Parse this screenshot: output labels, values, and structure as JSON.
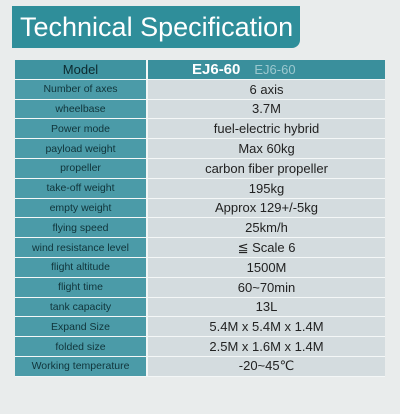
{
  "header": {
    "title": "Technical Specification"
  },
  "table": {
    "head": {
      "label": "Model",
      "value": "EJ6-60",
      "faded": "EJ6-60"
    },
    "rows": [
      [
        "Number of axes",
        "6 axis"
      ],
      [
        "wheelbase",
        "3.7M"
      ],
      [
        "Power mode",
        "fuel-electric hybrid"
      ],
      [
        "payload weight",
        "Max 60kg"
      ],
      [
        "propeller",
        "carbon fiber propeller"
      ],
      [
        "take-off weight",
        "195kg"
      ],
      [
        "empty weight",
        "Approx 129+/-5kg"
      ],
      [
        "flying speed",
        "25km/h"
      ],
      [
        "wind resistance level",
        "≦ Scale 6"
      ],
      [
        "flight altitude",
        "1500M"
      ],
      [
        "flight time",
        "60~70min"
      ],
      [
        "tank capacity",
        "13L"
      ],
      [
        "Expand Size",
        "5.4M x 5.4M x 1.4M"
      ],
      [
        "folded size",
        "2.5M x 1.6M x 1.4M"
      ],
      [
        "Working temperature",
        "-20~45℃"
      ]
    ]
  }
}
